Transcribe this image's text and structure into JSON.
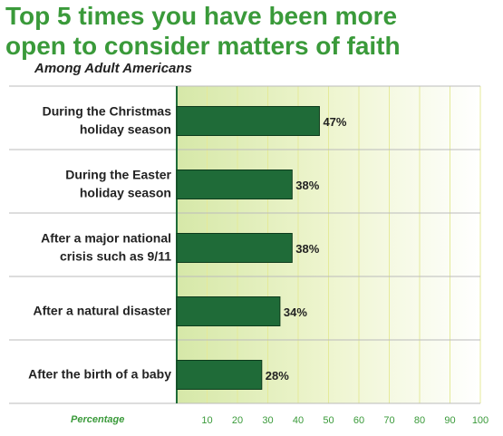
{
  "chart_data": {
    "type": "barh",
    "title": "Top 5 times you have been more\nopen to consider matters of faith",
    "subtitle": "Among Adult Americans",
    "x_label": "Percentage",
    "categories": [
      "During the Christmas\nholiday season",
      "During the Easter\nholiday season",
      "After a major national\ncrisis such as 9/11",
      "After a natural disaster",
      "After the birth of a baby"
    ],
    "values": [
      47,
      38,
      38,
      34,
      28
    ],
    "value_labels": [
      "47%",
      "38%",
      "38%",
      "34%",
      "28%"
    ],
    "color": "#1f6b38",
    "xlim": [
      0,
      100
    ],
    "xticks": [
      10,
      20,
      30,
      40,
      50,
      60,
      70,
      80,
      90,
      100
    ],
    "grid": true
  }
}
